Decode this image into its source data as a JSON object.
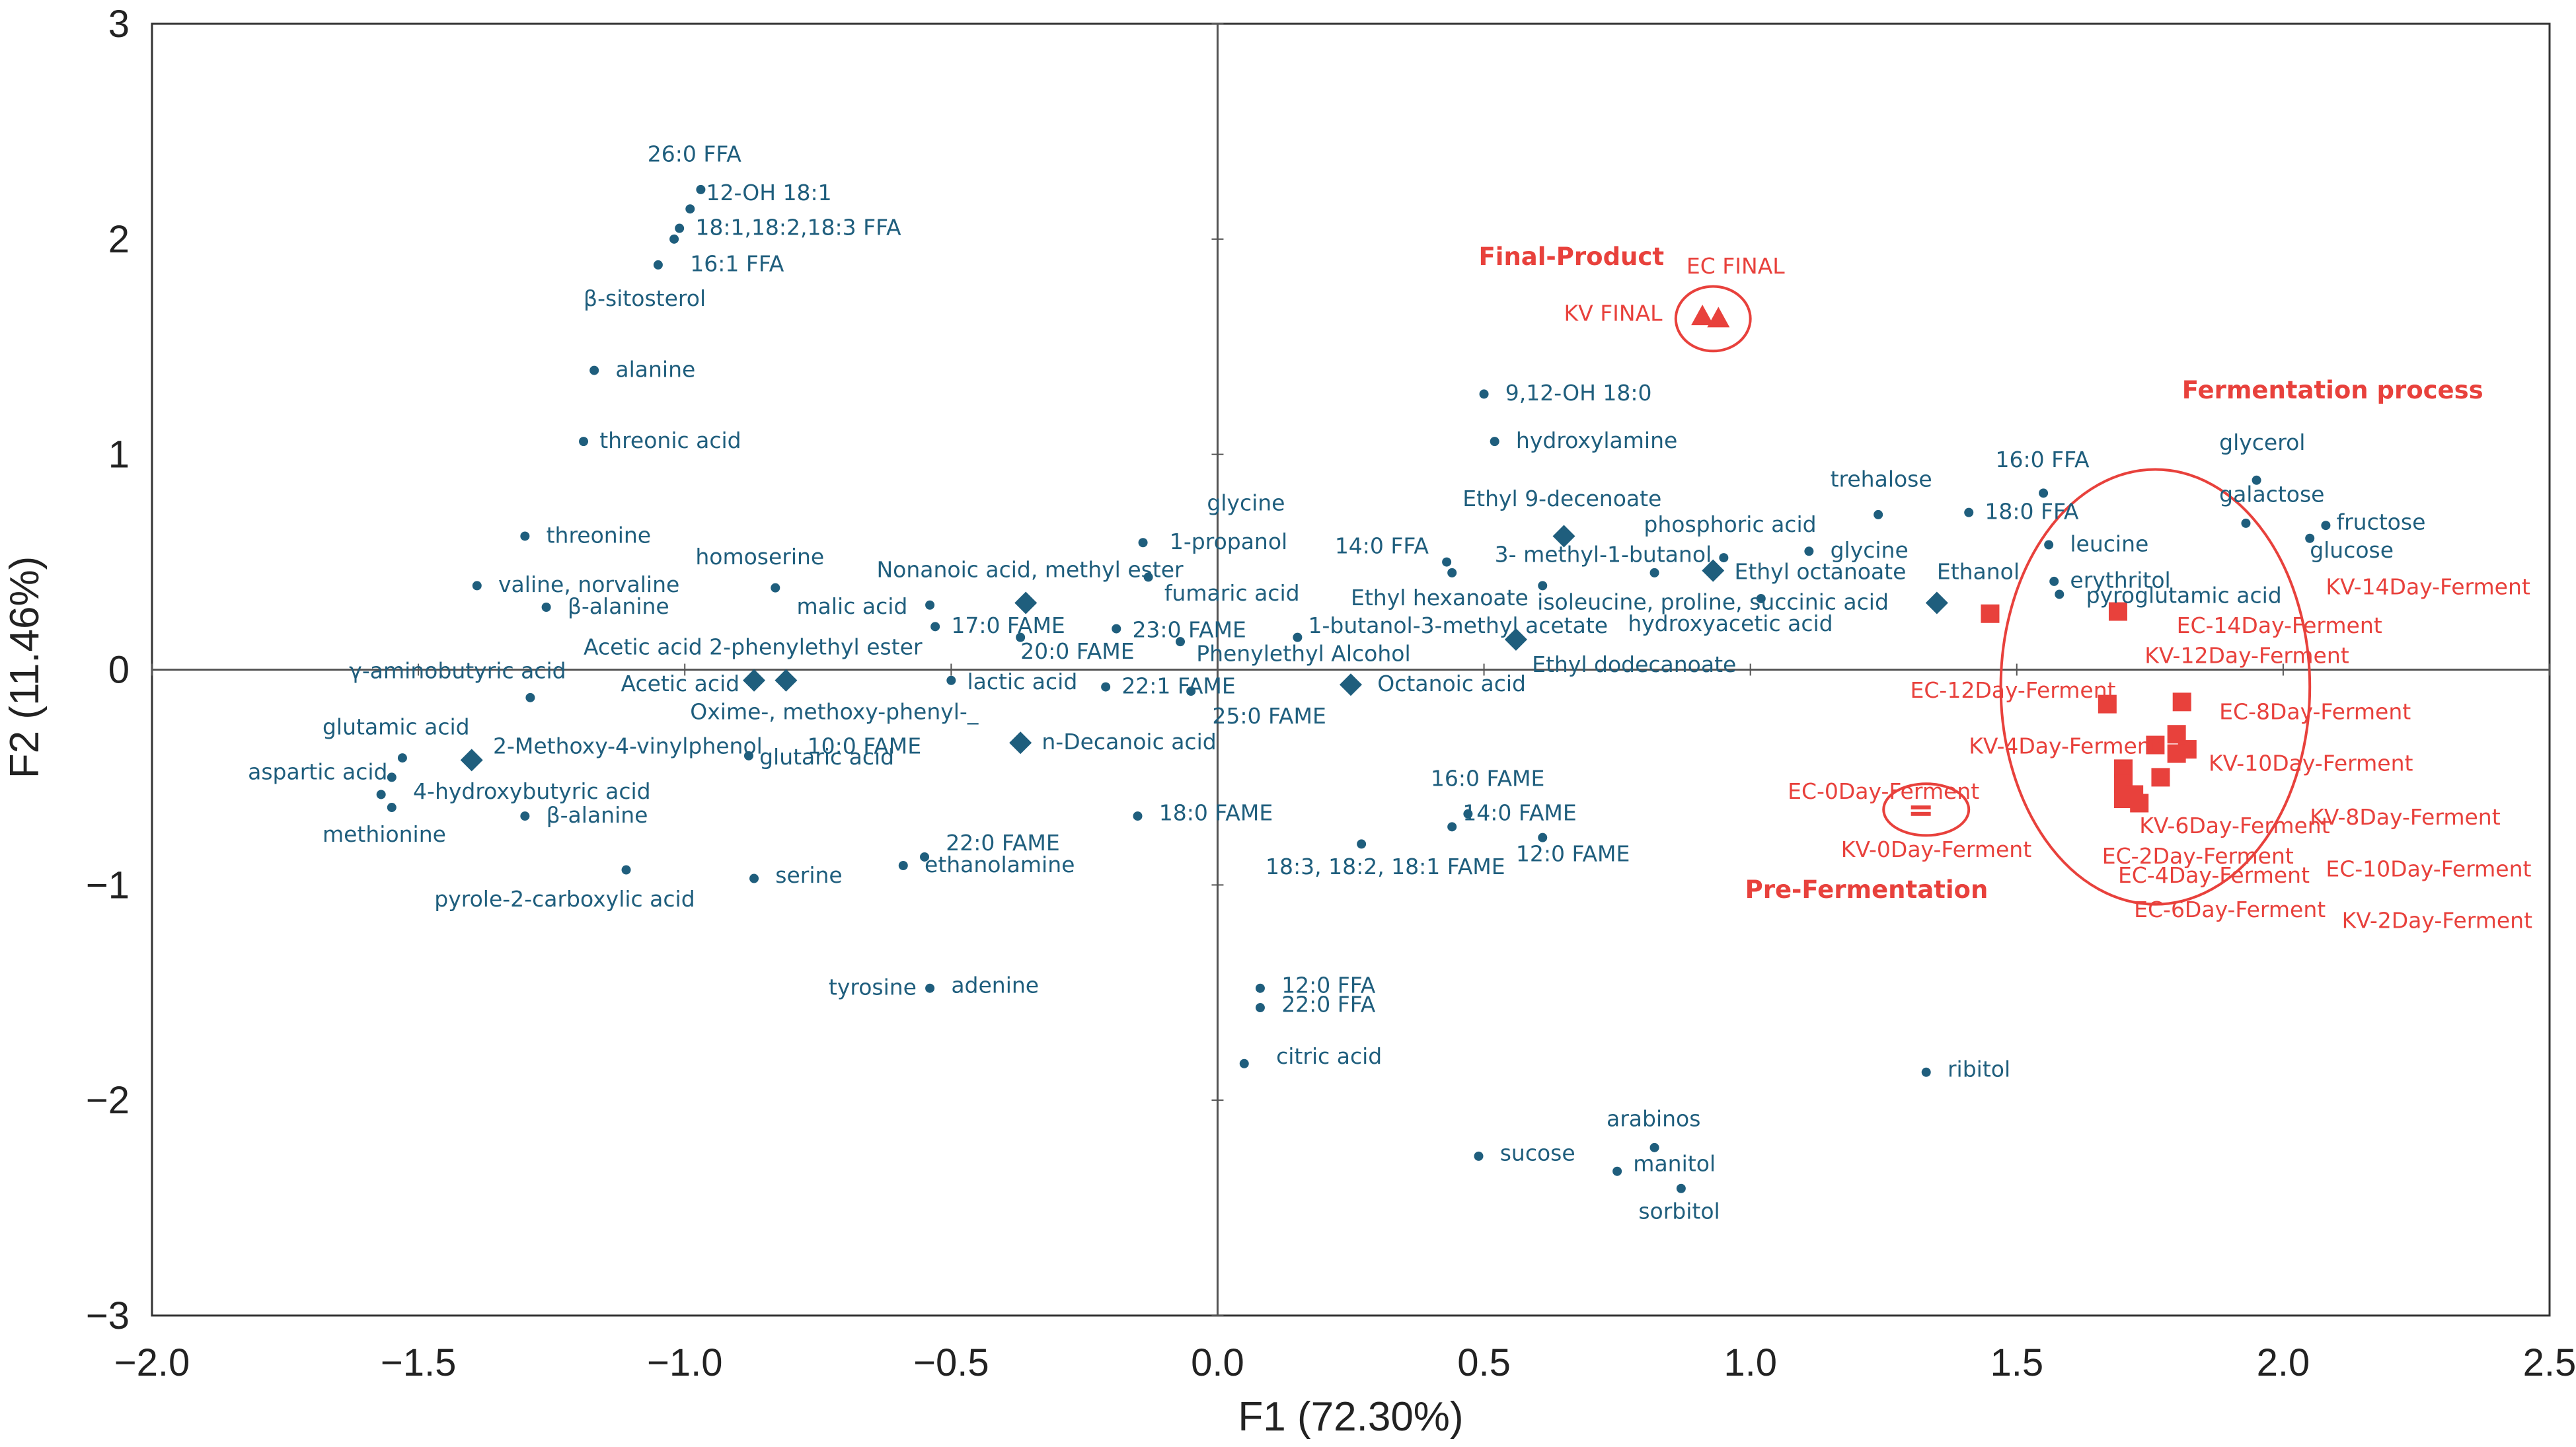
{
  "colors": {
    "variable": "#1f5e7d",
    "sample": "#e8413c",
    "axis": "#333333"
  },
  "chart_data": {
    "type": "scatter",
    "title": "",
    "xlabel": "F1 (72.30%)",
    "ylabel": "F2 (11.46%)",
    "xlim": [
      -2.0,
      2.5
    ],
    "ylim": [
      -3,
      3
    ],
    "xticks": [
      "−2.0",
      "−1.5",
      "−1.0",
      "−0.5",
      "0.0",
      "0.5",
      "1.0",
      "1.5",
      "2.0",
      "2.5"
    ],
    "yticks": [
      "−3",
      "−2",
      "−1",
      "0",
      "1",
      "2",
      "3"
    ],
    "grid": false,
    "variable_points": [
      {
        "x": -0.97,
        "y": 2.23
      },
      {
        "x": -0.99,
        "y": 2.14
      },
      {
        "x": -1.01,
        "y": 2.05
      },
      {
        "x": -1.02,
        "y": 2.0
      },
      {
        "x": -1.05,
        "y": 1.88
      },
      {
        "x": -1.17,
        "y": 1.39
      },
      {
        "x": -1.19,
        "y": 1.06
      },
      {
        "x": -1.3,
        "y": 0.62
      },
      {
        "x": -1.39,
        "y": 0.39
      },
      {
        "x": -1.26,
        "y": 0.29
      },
      {
        "x": -0.83,
        "y": 0.38
      },
      {
        "x": -0.54,
        "y": 0.3
      },
      {
        "x": -0.53,
        "y": 0.2
      },
      {
        "x": -0.37,
        "y": 0.15
      },
      {
        "x": -0.5,
        "y": -0.05
      },
      {
        "x": -0.14,
        "y": 0.59
      },
      {
        "x": -0.13,
        "y": 0.43
      },
      {
        "x": -0.19,
        "y": 0.19
      },
      {
        "x": -0.07,
        "y": 0.13
      },
      {
        "x": -0.21,
        "y": -0.08
      },
      {
        "x": -0.05,
        "y": -0.1
      },
      {
        "x": -0.15,
        "y": -0.68
      },
      {
        "x": -0.55,
        "y": -0.87
      },
      {
        "x": -0.59,
        "y": -0.91
      },
      {
        "x": -0.87,
        "y": -0.97
      },
      {
        "x": -1.11,
        "y": -0.93
      },
      {
        "x": -1.29,
        "y": -0.13
      },
      {
        "x": -1.53,
        "y": -0.41
      },
      {
        "x": -1.55,
        "y": -0.5
      },
      {
        "x": -1.57,
        "y": -0.58
      },
      {
        "x": -1.55,
        "y": -0.64
      },
      {
        "x": -1.3,
        "y": -0.68
      },
      {
        "x": -0.88,
        "y": -0.4
      },
      {
        "x": -0.54,
        "y": -1.48
      },
      {
        "x": 0.05,
        "y": -1.83
      },
      {
        "x": 0.08,
        "y": -1.48
      },
      {
        "x": 0.08,
        "y": -1.57
      },
      {
        "x": 0.15,
        "y": 0.15
      },
      {
        "x": 0.27,
        "y": -0.81
      },
      {
        "x": 0.43,
        "y": 0.5
      },
      {
        "x": 0.44,
        "y": 0.45
      },
      {
        "x": 0.47,
        "y": -0.67
      },
      {
        "x": 0.44,
        "y": -0.73
      },
      {
        "x": 0.61,
        "y": -0.78
      },
      {
        "x": 0.5,
        "y": 1.28
      },
      {
        "x": 0.52,
        "y": 1.06
      },
      {
        "x": 0.61,
        "y": 0.39
      },
      {
        "x": 0.82,
        "y": 0.45
      },
      {
        "x": 0.95,
        "y": 0.52
      },
      {
        "x": 1.02,
        "y": 0.33
      },
      {
        "x": 1.11,
        "y": 0.55
      },
      {
        "x": 1.24,
        "y": 0.72
      },
      {
        "x": 1.41,
        "y": 0.73
      },
      {
        "x": 1.55,
        "y": 0.82
      },
      {
        "x": 1.56,
        "y": 0.58
      },
      {
        "x": 1.57,
        "y": 0.41
      },
      {
        "x": 1.58,
        "y": 0.35
      },
      {
        "x": 1.95,
        "y": 0.88
      },
      {
        "x": 1.93,
        "y": 0.68
      },
      {
        "x": 2.05,
        "y": 0.61
      },
      {
        "x": 2.08,
        "y": 0.67
      },
      {
        "x": 0.49,
        "y": -2.26
      },
      {
        "x": 0.75,
        "y": -2.33
      },
      {
        "x": 0.82,
        "y": -2.22
      },
      {
        "x": 0.87,
        "y": -2.41
      },
      {
        "x": 1.33,
        "y": -1.87
      }
    ],
    "variable_diamonds": [
      {
        "x": -0.36,
        "y": 0.31
      },
      {
        "x": -0.87,
        "y": -0.05
      },
      {
        "x": -0.81,
        "y": -0.05
      },
      {
        "x": -1.4,
        "y": -0.42
      },
      {
        "x": -0.37,
        "y": -0.34
      },
      {
        "x": 0.25,
        "y": -0.07
      },
      {
        "x": 0.56,
        "y": 0.14
      },
      {
        "x": 0.65,
        "y": 0.62
      },
      {
        "x": 0.93,
        "y": 0.46
      },
      {
        "x": 1.35,
        "y": 0.31
      }
    ],
    "variable_labels": [
      {
        "text": "26:0 FFA",
        "x": -1.07,
        "y": 2.36
      },
      {
        "text": "12-OH 18:1",
        "x": -0.96,
        "y": 2.18
      },
      {
        "text": "18:1,18:2,18:3 FFA",
        "x": -0.98,
        "y": 2.02
      },
      {
        "text": "16:1 FFA",
        "x": -0.99,
        "y": 1.85
      },
      {
        "text": "β-sitosterol",
        "x": -1.19,
        "y": 1.69
      },
      {
        "text": "alanine",
        "x": -1.13,
        "y": 1.36
      },
      {
        "text": "threonic acid",
        "x": -1.16,
        "y": 1.03
      },
      {
        "text": "threonine",
        "x": -1.26,
        "y": 0.59
      },
      {
        "text": "valine, norvaline",
        "x": -1.35,
        "y": 0.36
      },
      {
        "text": "β-alanine",
        "x": -1.22,
        "y": 0.26
      },
      {
        "text": "homoserine",
        "x": -0.98,
        "y": 0.49
      },
      {
        "text": "Nonanoic acid, methyl ester",
        "x": -0.64,
        "y": 0.43
      },
      {
        "text": "malic acid",
        "x": -0.79,
        "y": 0.26
      },
      {
        "text": "17:0 FAME",
        "x": -0.5,
        "y": 0.17
      },
      {
        "text": "Acetic acid 2-phenylethyl ester",
        "x": -1.19,
        "y": 0.07
      },
      {
        "text": "20:0 FAME",
        "x": -0.37,
        "y": 0.05
      },
      {
        "text": "γ-aminobutyric acid",
        "x": -1.63,
        "y": -0.04
      },
      {
        "text": "Acetic acid",
        "x": -1.12,
        "y": -0.1
      },
      {
        "text": "lactic acid",
        "x": -0.47,
        "y": -0.09
      },
      {
        "text": "Oxime-, methoxy-phenyl-_",
        "x": -0.99,
        "y": -0.23
      },
      {
        "text": "glutamic acid",
        "x": -1.68,
        "y": -0.3
      },
      {
        "text": "2-Methoxy-4-vinylphenol",
        "x": -1.36,
        "y": -0.39
      },
      {
        "text": "10:0 FAME",
        "x": -0.77,
        "y": -0.39
      },
      {
        "text": "glutaric acid",
        "x": -0.86,
        "y": -0.44
      },
      {
        "text": "n-Decanoic acid",
        "x": -0.33,
        "y": -0.37
      },
      {
        "text": "aspartic acid",
        "x": -1.82,
        "y": -0.51
      },
      {
        "text": "4-hydroxybutyric acid",
        "x": -1.51,
        "y": -0.6
      },
      {
        "text": "β-alanine",
        "x": -1.26,
        "y": -0.71
      },
      {
        "text": "methionine",
        "x": -1.68,
        "y": -0.8
      },
      {
        "text": "22:0 FAME",
        "x": -0.51,
        "y": -0.84
      },
      {
        "text": "ethanolamine",
        "x": -0.55,
        "y": -0.94
      },
      {
        "text": "serine",
        "x": -0.83,
        "y": -0.99
      },
      {
        "text": "pyrole-2-carboxylic acid",
        "x": -1.47,
        "y": -1.1
      },
      {
        "text": "tyrosine",
        "x": -0.73,
        "y": -1.51
      },
      {
        "text": "adenine",
        "x": -0.5,
        "y": -1.5
      },
      {
        "text": "glycine",
        "x": -0.02,
        "y": 0.74
      },
      {
        "text": "1-propanol",
        "x": -0.09,
        "y": 0.56
      },
      {
        "text": "fumaric acid",
        "x": -0.1,
        "y": 0.32
      },
      {
        "text": "23:0 FAME",
        "x": -0.16,
        "y": 0.15
      },
      {
        "text": "22:1 FAME",
        "x": -0.18,
        "y": -0.11
      },
      {
        "text": "25:0 FAME",
        "x": -0.01,
        "y": -0.25
      },
      {
        "text": "Phenylethyl Alcohol",
        "x": -0.04,
        "y": 0.04
      },
      {
        "text": "1-butanol-3-methyl acetate",
        "x": 0.17,
        "y": 0.17
      },
      {
        "text": "Ethyl hexanoate",
        "x": 0.25,
        "y": 0.3
      },
      {
        "text": "14:0 FFA",
        "x": 0.22,
        "y": 0.54
      },
      {
        "text": "3- methyl-1-butanol",
        "x": 0.52,
        "y": 0.5
      },
      {
        "text": "Ethyl 9-decenoate",
        "x": 0.46,
        "y": 0.76
      },
      {
        "text": "Octanoic acid",
        "x": 0.3,
        "y": -0.1
      },
      {
        "text": "Ethyl dodecanoate",
        "x": 0.59,
        "y": -0.01
      },
      {
        "text": "9,12-OH 18:0",
        "x": 0.54,
        "y": 1.25
      },
      {
        "text": "hydroxylamine",
        "x": 0.56,
        "y": 1.03
      },
      {
        "text": "isoleucine, proline, succinic acid",
        "x": 0.6,
        "y": 0.28
      },
      {
        "text": "hydroxyacetic acid",
        "x": 0.77,
        "y": 0.18
      },
      {
        "text": "phosphoric acid",
        "x": 0.8,
        "y": 0.64
      },
      {
        "text": "Ethyl octanoate",
        "x": 0.97,
        "y": 0.42
      },
      {
        "text": "glycine",
        "x": 1.15,
        "y": 0.52
      },
      {
        "text": "trehalose",
        "x": 1.15,
        "y": 0.85
      },
      {
        "text": "Ethanol",
        "x": 1.35,
        "y": 0.42
      },
      {
        "text": "16:0 FFA",
        "x": 1.46,
        "y": 0.94
      },
      {
        "text": "18:0 FFA",
        "x": 1.44,
        "y": 0.7
      },
      {
        "text": "leucine",
        "x": 1.6,
        "y": 0.55
      },
      {
        "text": "erythritol",
        "x": 1.6,
        "y": 0.38
      },
      {
        "text": "pyroglutamic acid",
        "x": 1.63,
        "y": 0.31
      },
      {
        "text": "glycerol",
        "x": 1.88,
        "y": 1.02
      },
      {
        "text": "galactose",
        "x": 1.88,
        "y": 0.78
      },
      {
        "text": "fructose",
        "x": 2.1,
        "y": 0.65
      },
      {
        "text": "glucose",
        "x": 2.05,
        "y": 0.52
      },
      {
        "text": "16:0 FAME",
        "x": 0.4,
        "y": -0.54
      },
      {
        "text": "14:0 FAME",
        "x": 0.46,
        "y": -0.7
      },
      {
        "text": "12:0 FAME",
        "x": 0.56,
        "y": -0.89
      },
      {
        "text": "18:3, 18:2, 18:1 FAME",
        "x": 0.09,
        "y": -0.95
      },
      {
        "text": "18:0 FAME",
        "x": -0.11,
        "y": -0.7
      },
      {
        "text": "12:0 FFA",
        "x": 0.12,
        "y": -1.5
      },
      {
        "text": "22:0 FFA",
        "x": 0.12,
        "y": -1.59
      },
      {
        "text": "citric acid",
        "x": 0.11,
        "y": -1.83
      },
      {
        "text": "sucose",
        "x": 0.53,
        "y": -2.28
      },
      {
        "text": "arabinos",
        "x": 0.73,
        "y": -2.12
      },
      {
        "text": "manitol",
        "x": 0.78,
        "y": -2.33
      },
      {
        "text": "sorbitol",
        "x": 0.79,
        "y": -2.55
      },
      {
        "text": "ribitol",
        "x": 1.37,
        "y": -1.89
      }
    ],
    "sample_points": [
      {
        "name": "KV FINAL",
        "marker": "triangle",
        "x": 0.91,
        "y": 1.64
      },
      {
        "name": "EC FINAL",
        "marker": "triangle",
        "x": 0.94,
        "y": 1.63
      },
      {
        "name": "EC-0Day-Ferment",
        "marker": "dash",
        "x": 1.32,
        "y": -0.64
      },
      {
        "name": "KV-0Day-Ferment",
        "marker": "dash",
        "x": 1.32,
        "y": -0.67
      },
      {
        "name": "EC-12Day-Ferment",
        "marker": "square",
        "x": 1.45,
        "y": 0.26
      },
      {
        "name": "EC-14Day-Ferment",
        "marker": "square",
        "x": 1.69,
        "y": 0.27
      },
      {
        "name": "KV-12Day-Ferment",
        "marker": "square",
        "x": 1.67,
        "y": -0.16
      },
      {
        "name": "EC-8Day-Ferment",
        "marker": "square",
        "x": 1.81,
        "y": -0.15
      },
      {
        "name": "KV-4Day-Ferment",
        "marker": "square",
        "x": 1.76,
        "y": -0.35
      },
      {
        "name": "KV-10Day-Ferment",
        "marker": "square",
        "x": 1.8,
        "y": -0.3
      },
      {
        "name": "KV-14Day-Ferment",
        "marker": "square",
        "x": 1.82,
        "y": -0.37
      },
      {
        "name": "KV-6Day-Ferment",
        "marker": "square",
        "x": 1.7,
        "y": -0.46
      },
      {
        "name": "EC-2Day-Ferment",
        "marker": "square",
        "x": 1.7,
        "y": -0.53
      },
      {
        "name": "EC-4Day-Ferment",
        "marker": "square",
        "x": 1.7,
        "y": -0.6
      },
      {
        "name": "KV-8Day-Ferment",
        "marker": "square",
        "x": 1.72,
        "y": -0.58
      },
      {
        "name": "EC-10Day-Ferment",
        "marker": "square",
        "x": 1.77,
        "y": -0.5
      },
      {
        "name": "KV-2Day-Ferment",
        "marker": "square",
        "x": 1.8,
        "y": -0.39
      },
      {
        "name": "EC-6Day-Ferment",
        "marker": "square",
        "x": 1.73,
        "y": -0.62
      }
    ],
    "sample_labels": [
      {
        "text": "EC FINAL",
        "x": 0.88,
        "y": 1.84
      },
      {
        "text": "KV FINAL",
        "x": 0.65,
        "y": 1.62
      },
      {
        "text": "KV-14Day-Ferment",
        "x": 2.08,
        "y": 0.35
      },
      {
        "text": "EC-14Day-Ferment",
        "x": 1.8,
        "y": 0.17
      },
      {
        "text": "KV-12Day-Ferment",
        "x": 1.74,
        "y": 0.03
      },
      {
        "text": "EC-12Day-Ferment",
        "x": 1.3,
        "y": -0.13
      },
      {
        "text": "EC-8Day-Ferment",
        "x": 1.88,
        "y": -0.23
      },
      {
        "text": "KV-4Day-Ferment",
        "x": 1.41,
        "y": -0.39
      },
      {
        "text": "KV-10Day-Ferment",
        "x": 1.86,
        "y": -0.47
      },
      {
        "text": "EC-0Day-Ferment",
        "x": 1.07,
        "y": -0.6
      },
      {
        "text": "KV-0Day-Ferment",
        "x": 1.17,
        "y": -0.87
      },
      {
        "text": "KV-8Day-Ferment",
        "x": 2.05,
        "y": -0.72
      },
      {
        "text": "KV-6Day-Ferment",
        "x": 1.73,
        "y": -0.76
      },
      {
        "text": "EC-2Day-Ferment",
        "x": 1.66,
        "y": -0.9
      },
      {
        "text": "EC-4Day-Ferment",
        "x": 1.69,
        "y": -0.99
      },
      {
        "text": "EC-10Day-Ferment",
        "x": 2.08,
        "y": -0.96
      },
      {
        "text": "EC-6Day-Ferment",
        "x": 1.72,
        "y": -1.15
      },
      {
        "text": "KV-2Day-Ferment",
        "x": 2.11,
        "y": -1.2
      }
    ],
    "group_annotations": [
      {
        "text": "Final-Product",
        "x": 0.49,
        "y": 1.88
      },
      {
        "text": "Fermentation process",
        "x": 1.81,
        "y": 1.26
      },
      {
        "text": "Pre-Fermentation",
        "x": 0.99,
        "y": -1.06
      }
    ],
    "ellipses": [
      {
        "group": "Final-Product",
        "cx": 0.93,
        "cy": 1.63,
        "rx": 0.07,
        "ry": 0.15
      },
      {
        "group": "Pre-Fermentation",
        "cx": 1.33,
        "cy": -0.65,
        "rx": 0.08,
        "ry": 0.12
      },
      {
        "group": "Fermentation process",
        "cx": 1.76,
        "cy": -0.08,
        "rx": 0.29,
        "ry": 1.01
      }
    ]
  }
}
